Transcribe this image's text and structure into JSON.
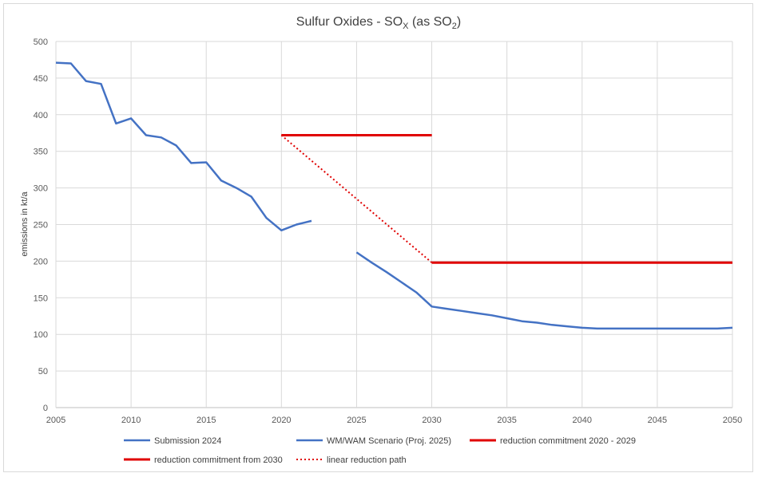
{
  "chart_data": {
    "type": "line",
    "title": {
      "prefix": "Sulfur Oxides - SO",
      "sub1": "X",
      "middle": " (as SO",
      "sub2": "2",
      "suffix": ")"
    },
    "xlabel": "",
    "ylabel": "emissions in kt/a",
    "xlim": [
      2005,
      2050
    ],
    "ylim": [
      0,
      500
    ],
    "xticks": [
      2005,
      2010,
      2015,
      2020,
      2025,
      2030,
      2035,
      2040,
      2045,
      2050
    ],
    "yticks": [
      0,
      50,
      100,
      150,
      200,
      250,
      300,
      350,
      400,
      450,
      500
    ],
    "grid": true,
    "legend_position": "bottom",
    "series": [
      {
        "name": "Submission 2024",
        "color": "#4472c4",
        "style": "solid",
        "x": [
          2005,
          2006,
          2007,
          2008,
          2009,
          2010,
          2011,
          2012,
          2013,
          2014,
          2015,
          2016,
          2017,
          2018,
          2019,
          2020,
          2021,
          2022
        ],
        "y": [
          471,
          470,
          446,
          442,
          388,
          395,
          372,
          369,
          358,
          334,
          335,
          310,
          300,
          288,
          259,
          242,
          250,
          255
        ]
      },
      {
        "name": "WM/WAM Scenario (Proj. 2025)",
        "color": "#4472c4",
        "style": "solid",
        "x": [
          2025,
          2026,
          2027,
          2028,
          2029,
          2030,
          2031,
          2032,
          2033,
          2034,
          2035,
          2036,
          2037,
          2038,
          2039,
          2040,
          2041,
          2042,
          2043,
          2044,
          2045,
          2046,
          2047,
          2048,
          2049,
          2050
        ],
        "y": [
          212,
          198,
          185,
          171,
          157,
          138,
          135,
          132,
          129,
          126,
          122,
          118,
          116,
          113,
          111,
          109,
          108,
          108,
          108,
          108,
          108,
          108,
          108,
          108,
          108,
          109
        ]
      },
      {
        "name": "reduction commitment 2020 - 2029",
        "color": "#e00000",
        "style": "solid",
        "x": [
          2020,
          2030
        ],
        "y": [
          372,
          372
        ]
      },
      {
        "name": "reduction commitment from 2030",
        "color": "#e00000",
        "style": "solid",
        "x": [
          2030,
          2050
        ],
        "y": [
          198,
          198
        ]
      },
      {
        "name": "linear reduction path",
        "color": "#e00000",
        "style": "dotted",
        "x": [
          2020,
          2030
        ],
        "y": [
          372,
          198
        ]
      }
    ]
  }
}
